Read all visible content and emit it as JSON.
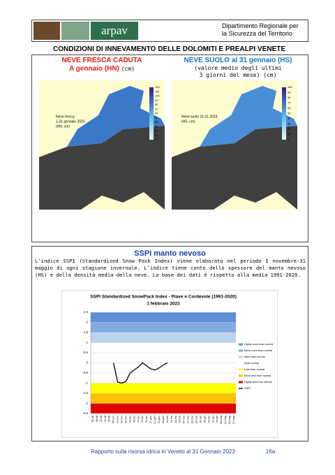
{
  "header": {
    "logo": "arpav",
    "department": [
      "Dipartimento Regionale per",
      "la Sicurezza del Territorio"
    ]
  },
  "title": "CONDIZIONI DI INNEVAMENTO DELLE DOLOMITI E PREALPI VENETE",
  "maps": [
    {
      "heading": [
        "NEVE FRESCA CADUTA",
        "A gennaio (HN)"
      ],
      "unit": "(cm)",
      "label": [
        "Neve fresca",
        "1-31 gennaio 2023",
        "(HN, cm)"
      ],
      "scale": [
        120,
        110,
        100,
        90,
        80,
        70,
        60,
        50,
        40,
        30,
        20,
        10,
        0
      ]
    },
    {
      "heading": [
        "NEVE  SUOLO al 31 gennaio (HS)"
      ],
      "subheading": [
        "(valore medio degli ultimi",
        "3 giorni del mese)"
      ],
      "unit": "(cm)",
      "label": [
        "Neve suolo 31.01.2023",
        "(HS, cm)"
      ],
      "scale": [
        100,
        90,
        80,
        70,
        60,
        50,
        40,
        30,
        20,
        10,
        0
      ]
    }
  ],
  "sspi": {
    "title": "SSPI manto nevoso",
    "text": "L’indice SSPI (Standardized Snow Pack Index) viene elaborato nel periodo 1 novembre-31 maggio di ogni stagione invernale. L’indice tiene conto dello spessore del manto nevoso (HS) e della densità media della neve. La base dei dati è rispetto alla media 1991-2020."
  },
  "chart_data": {
    "type": "line",
    "title": "SSPI  Standardized SnowPack Index - Piave e Cordevole  (1991-2020)",
    "subtitle": "1 febbraio 2023",
    "categories": [
      "01-ott",
      "08-ott",
      "15-ott",
      "22-ott",
      "29-ott",
      "05-nov",
      "12-nov",
      "19-nov",
      "26-nov",
      "03-dic",
      "10-dic",
      "17-dic",
      "24-dic",
      "31-dic",
      "07-gen",
      "14-gen",
      "21-gen",
      "28-gen",
      "04-feb",
      "11-feb",
      "18-feb",
      "25-feb",
      "04-mar",
      "11-mar",
      "18-mar",
      "25-mar",
      "01-apr",
      "08-apr",
      "15-apr",
      "22-apr",
      "29-apr",
      "06-mag",
      "13-mag",
      "20-mag",
      "27-mag"
    ],
    "series": [
      {
        "name": "SSPI",
        "color": "#000000",
        "values": [
          null,
          null,
          null,
          null,
          null,
          0,
          -0.95,
          -1.0,
          -0.9,
          -0.5,
          -0.35,
          -0.2,
          0.0,
          -0.15,
          -0.3,
          -0.35,
          -0.25,
          -0.1,
          0.0,
          null,
          null,
          null,
          null,
          null,
          null,
          null,
          null,
          null,
          null,
          null,
          null,
          null,
          null,
          null,
          null
        ]
      }
    ],
    "bands": [
      {
        "name": "Highly more than normal",
        "color": "#5b8fd6",
        "range": [
          2,
          2.5
        ]
      },
      {
        "name": "Much more than normal",
        "color": "#80aae2",
        "range": [
          1.5,
          2
        ]
      },
      {
        "name": "More than normal",
        "color": "#bcd3f0",
        "range": [
          1,
          1.5
        ]
      },
      {
        "name": "Near normal",
        "color": "#ffffff",
        "range": [
          -1,
          1
        ]
      },
      {
        "name": "Less than normal",
        "color": "#ffff00",
        "range": [
          -1.5,
          -1
        ]
      },
      {
        "name": "Much less than normal",
        "color": "#ffc000",
        "range": [
          -2,
          -1.5
        ]
      },
      {
        "name": "Highly less than normal",
        "color": "#e00000",
        "range": [
          -2.5,
          -2
        ]
      }
    ],
    "ylim": [
      -2.5,
      2.5
    ],
    "yticks": [
      {
        "value": 2.5,
        "label": "2,5"
      },
      2,
      {
        "value": 1.5,
        "label": "1,5"
      },
      1,
      {
        "value": 0.5,
        "label": "0,5"
      },
      0,
      {
        "value": -0.5,
        "label": "-0,5"
      },
      -1,
      {
        "value": -1.5,
        "label": "-1,5"
      },
      -2,
      {
        "value": -2.5,
        "label": "-2,5"
      }
    ],
    "grid": true,
    "legend": "right"
  },
  "footer": {
    "text": "Rapporto sulla risorsa idrica in Veneto al 31 Gennaio 2023",
    "page": "16a"
  }
}
